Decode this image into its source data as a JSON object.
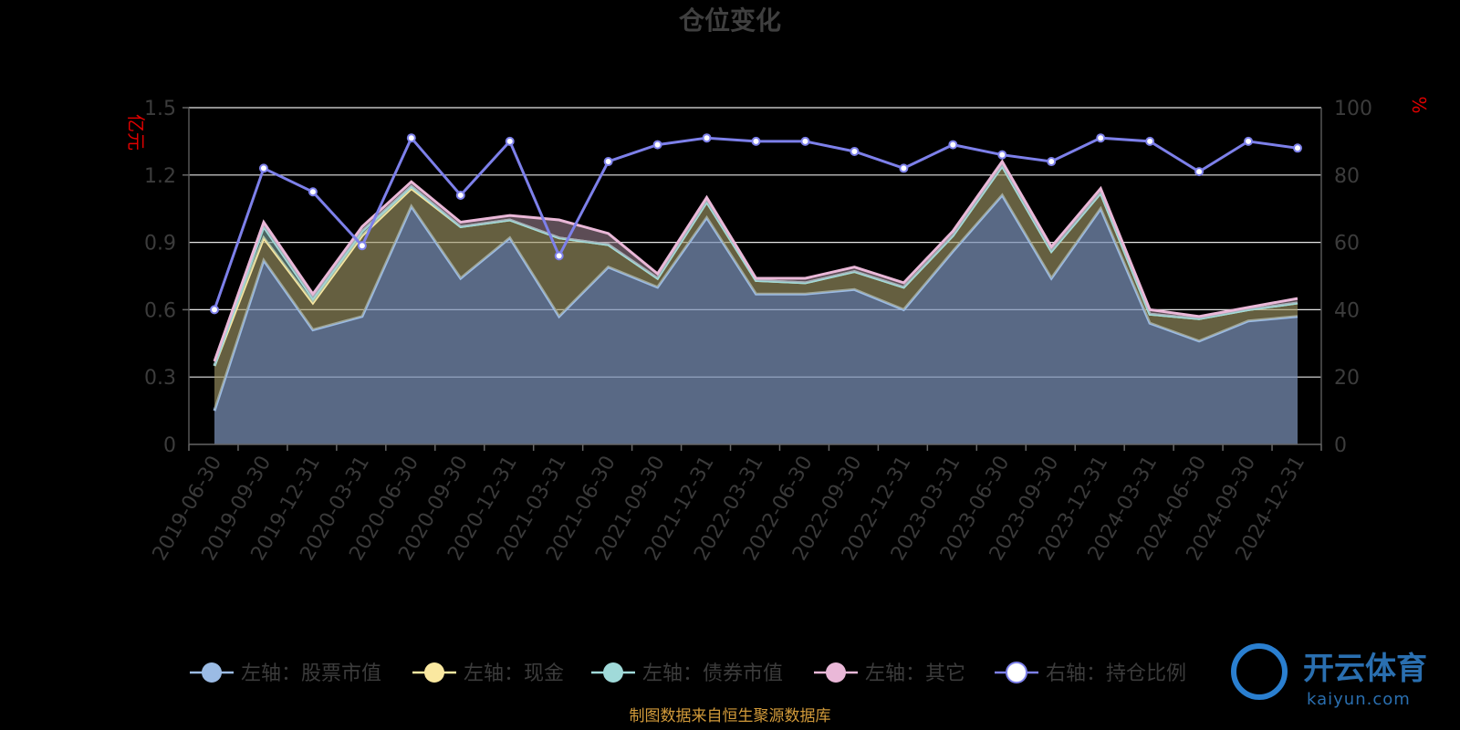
{
  "chart_data": {
    "type": "area",
    "title": "仓位变化",
    "y_left_unit": "亿元",
    "y_right_unit": "%",
    "y_left_ticks": [
      "0",
      "0.3",
      "0.6",
      "0.9",
      "1.2",
      "1.5"
    ],
    "y_right_ticks": [
      "0",
      "20",
      "40",
      "60",
      "80",
      "100"
    ],
    "ylim_left": [
      0,
      1.5
    ],
    "ylim_right": [
      0,
      100
    ],
    "grid": true,
    "stacked_left": true,
    "x": [
      "2019-06-30",
      "2019-09-30",
      "2019-12-31",
      "2020-03-31",
      "2020-06-30",
      "2020-09-30",
      "2020-12-31",
      "2021-03-31",
      "2021-06-30",
      "2021-09-30",
      "2021-12-31",
      "2022-03-31",
      "2022-06-30",
      "2022-09-30",
      "2022-12-31",
      "2023-03-31",
      "2023-06-30",
      "2023-09-30",
      "2023-12-31",
      "2024-03-31",
      "2024-06-30",
      "2024-09-30",
      "2024-12-31"
    ],
    "series": [
      {
        "name": "左轴：股票市值",
        "axis": "left",
        "color": "#9bbbe4",
        "values": [
          0.15,
          0.82,
          0.51,
          0.57,
          1.06,
          0.74,
          0.92,
          0.57,
          0.79,
          0.7,
          1.01,
          0.67,
          0.67,
          0.69,
          0.6,
          0.86,
          1.11,
          0.74,
          1.05,
          0.54,
          0.46,
          0.55,
          0.57
        ]
      },
      {
        "name": "左轴：现金",
        "axis": "left",
        "color": "#fae8a0",
        "values": [
          0.2,
          0.1,
          0.12,
          0.36,
          0.08,
          0.23,
          0.08,
          0.35,
          0.1,
          0.04,
          0.07,
          0.06,
          0.05,
          0.08,
          0.1,
          0.07,
          0.13,
          0.12,
          0.07,
          0.04,
          0.1,
          0.05,
          0.06
        ]
      },
      {
        "name": "左轴：债券市值",
        "axis": "left",
        "color": "#a0dad9",
        "values": [
          0.0,
          0.05,
          0.02,
          0.02,
          0.01,
          0.0,
          0.0,
          0.0,
          0.0,
          0.0,
          0.0,
          0.0,
          0.0,
          0.0,
          0.0,
          0.0,
          0.0,
          0.0,
          0.0,
          0.0,
          0.0,
          0.0,
          0.0
        ]
      },
      {
        "name": "左轴：其它",
        "axis": "left",
        "color": "#eab8d8",
        "values": [
          0.02,
          0.02,
          0.02,
          0.02,
          0.02,
          0.02,
          0.02,
          0.08,
          0.05,
          0.02,
          0.02,
          0.01,
          0.02,
          0.02,
          0.02,
          0.02,
          0.02,
          0.02,
          0.02,
          0.02,
          0.01,
          0.01,
          0.02
        ]
      },
      {
        "name": "右轴：持仓比例",
        "axis": "right",
        "color": "#7d80ea",
        "values": [
          40,
          82,
          75,
          59,
          91,
          74,
          90,
          56,
          84,
          89,
          91,
          90,
          90,
          87,
          82,
          89,
          86,
          84,
          91,
          90,
          81,
          90,
          88
        ]
      }
    ],
    "legend_position": "bottom"
  },
  "source_text": "制图数据来自恒生聚源数据库",
  "watermark": {
    "brand": "开云体育",
    "url": "kaiyun.com"
  }
}
